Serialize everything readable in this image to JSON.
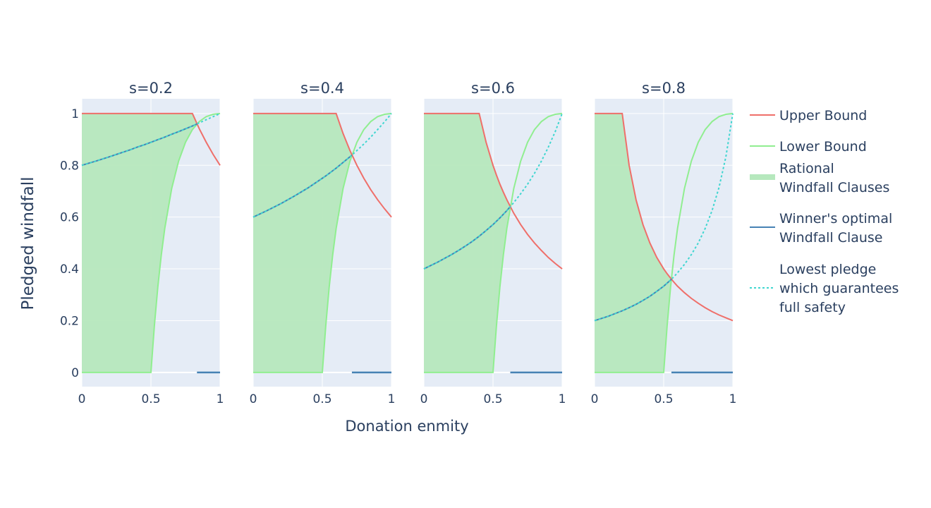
{
  "chart_data": {
    "type": "line",
    "xlabel": "Donation enmity",
    "ylabel": "Pledged windfall",
    "xlim": [
      0,
      1
    ],
    "ylim": [
      -0.055,
      1.057
    ],
    "x_ticks": [
      "0",
      "0.5",
      "1"
    ],
    "x_tick_values": [
      0,
      0.5,
      1
    ],
    "y_ticks": [
      "0",
      "0.2",
      "0.4",
      "0.6",
      "0.8",
      "1"
    ],
    "y_tick_values": [
      0,
      0.2,
      0.4,
      0.6,
      0.8,
      1
    ],
    "grid": true,
    "legend_position": "right",
    "legend": [
      {
        "key": "upper",
        "lines": [
          "Upper Bound"
        ]
      },
      {
        "key": "lower",
        "lines": [
          "Lower Bound"
        ]
      },
      {
        "key": "rational",
        "lines": [
          "Rational",
          "Windfall Clauses"
        ]
      },
      {
        "key": "winner",
        "lines": [
          "Winner's optimal",
          "Windfall Clause"
        ]
      },
      {
        "key": "lowest",
        "lines": [
          "Lowest pledge",
          "which guarantees",
          "full safety"
        ]
      }
    ],
    "colors": {
      "upper": "#ef6f6a",
      "lower": "#90ee90",
      "rational": "#b6e8bd",
      "winner": "#4682b4",
      "lowest": "#40d6d0",
      "plot_bg": "#e5ecf6",
      "text": "#2a3f5f"
    },
    "x": [
      0,
      0.1,
      0.2,
      0.25,
      0.3,
      0.35,
      0.4,
      0.45,
      0.5,
      0.525,
      0.55,
      0.575,
      0.6,
      0.65,
      0.7,
      0.75,
      0.8,
      0.85,
      0.9,
      0.95,
      1
    ],
    "lower_bound": [
      0,
      0,
      0,
      0,
      0,
      0,
      0,
      0,
      0,
      0.181,
      0.331,
      0.454,
      0.556,
      0.71,
      0.816,
      0.889,
      0.938,
      0.969,
      0.988,
      0.997,
      1
    ],
    "panels": [
      {
        "title": "s=0.2",
        "intersection_x": 0.833,
        "upper_bound": [
          1,
          1,
          1,
          1,
          1,
          1,
          1,
          1,
          1,
          1,
          1,
          1,
          1,
          1,
          1,
          1,
          1,
          0.941,
          0.889,
          0.842,
          0.8
        ],
        "lowest_pledge": [
          0.8,
          0.816,
          0.833,
          0.842,
          0.851,
          0.86,
          0.87,
          0.879,
          0.889,
          0.894,
          0.899,
          0.904,
          0.909,
          0.92,
          0.93,
          0.941,
          0.952,
          0.964,
          0.976,
          0.988,
          1
        ]
      },
      {
        "title": "s=0.4",
        "intersection_x": 0.714,
        "upper_bound": [
          1,
          1,
          1,
          1,
          1,
          1,
          1,
          1,
          1,
          1,
          1,
          1,
          1,
          0.923,
          0.857,
          0.8,
          0.75,
          0.706,
          0.667,
          0.632,
          0.6
        ],
        "lowest_pledge": [
          0.6,
          0.625,
          0.652,
          0.667,
          0.682,
          0.698,
          0.714,
          0.732,
          0.75,
          0.759,
          0.769,
          0.779,
          0.789,
          0.811,
          0.833,
          0.857,
          0.882,
          0.909,
          0.938,
          0.968,
          1
        ]
      },
      {
        "title": "s=0.6",
        "intersection_x": 0.625,
        "upper_bound": [
          1,
          1,
          1,
          1,
          1,
          1,
          1,
          0.889,
          0.8,
          0.762,
          0.727,
          0.696,
          0.667,
          0.615,
          0.571,
          0.533,
          0.5,
          0.471,
          0.444,
          0.421,
          0.4
        ],
        "lowest_pledge": [
          0.4,
          0.426,
          0.455,
          0.471,
          0.488,
          0.506,
          0.526,
          0.548,
          0.571,
          0.584,
          0.597,
          0.611,
          0.625,
          0.656,
          0.69,
          0.727,
          0.769,
          0.816,
          0.87,
          0.93,
          1
        ]
      },
      {
        "title": "s=0.8",
        "intersection_x": 0.556,
        "upper_bound": [
          1,
          1,
          1,
          0.8,
          0.667,
          0.571,
          0.5,
          0.444,
          0.4,
          0.381,
          0.364,
          0.348,
          0.333,
          0.308,
          0.286,
          0.267,
          0.25,
          0.235,
          0.222,
          0.211,
          0.2
        ],
        "lowest_pledge": [
          0.2,
          0.217,
          0.238,
          0.25,
          0.263,
          0.278,
          0.294,
          0.313,
          0.333,
          0.345,
          0.357,
          0.37,
          0.385,
          0.417,
          0.455,
          0.5,
          0.556,
          0.625,
          0.714,
          0.833,
          1
        ]
      }
    ]
  }
}
